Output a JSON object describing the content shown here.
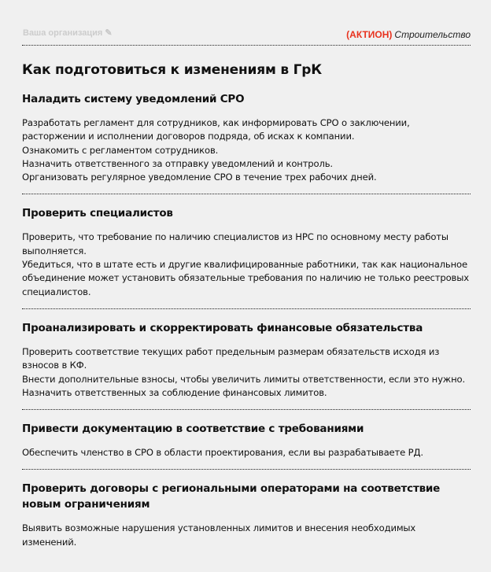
{
  "header": {
    "organization_placeholder": "Ваша организация",
    "brand_logo": "(АКТИОН)",
    "brand_name": "Строительство",
    "edit_icon": "pencil-icon",
    "colors": {
      "brand": "#e8321e",
      "background": "#f0f0f0"
    }
  },
  "title": "Как подготовиться к изменениям в ГрК",
  "sections": [
    {
      "heading": "Наладить систему уведомлений СРО",
      "lines": [
        "Разработать регламент для сотрудников, как информировать СРО о заключении, расторжении и исполнении договоров подряда, об исках к компании.",
        "Ознакомить с регламентом сотрудников.",
        "Назначить ответственного за отправку уведомлений и контроль.",
        "Организовать регулярное уведомление СРО в течение трех рабочих дней."
      ]
    },
    {
      "heading": "Проверить специалистов",
      "lines": [
        "Проверить, что требование по наличию специалистов из НРС по основному месту работы выполняется.",
        "Убедиться, что в штате есть и другие квалифицированные работники, так как национальное объединение может установить обязательные требования по наличию не только реестровых специалистов."
      ]
    },
    {
      "heading": "Проанализировать и скорректировать финансовые обязательства",
      "lines": [
        "Проверить соответствие текущих работ предельным размерам обязательств исходя из взносов в КФ.",
        "Внести дополнительные взносы, чтобы увеличить лимиты ответственности, если это нужно.",
        "Назначить ответственных за соблюдение финансовых лимитов."
      ]
    },
    {
      "heading": "Привести документацию в соответствие с требованиями",
      "lines": [
        "Обеспечить членство в СРО в области проектирования, если вы разрабатываете РД."
      ]
    },
    {
      "heading": "Проверить договоры с региональными операторами на соответствие новым ограничениям",
      "lines": [
        "Выявить возможные нарушения установленных лимитов и внесения необходимых изменений."
      ]
    }
  ]
}
